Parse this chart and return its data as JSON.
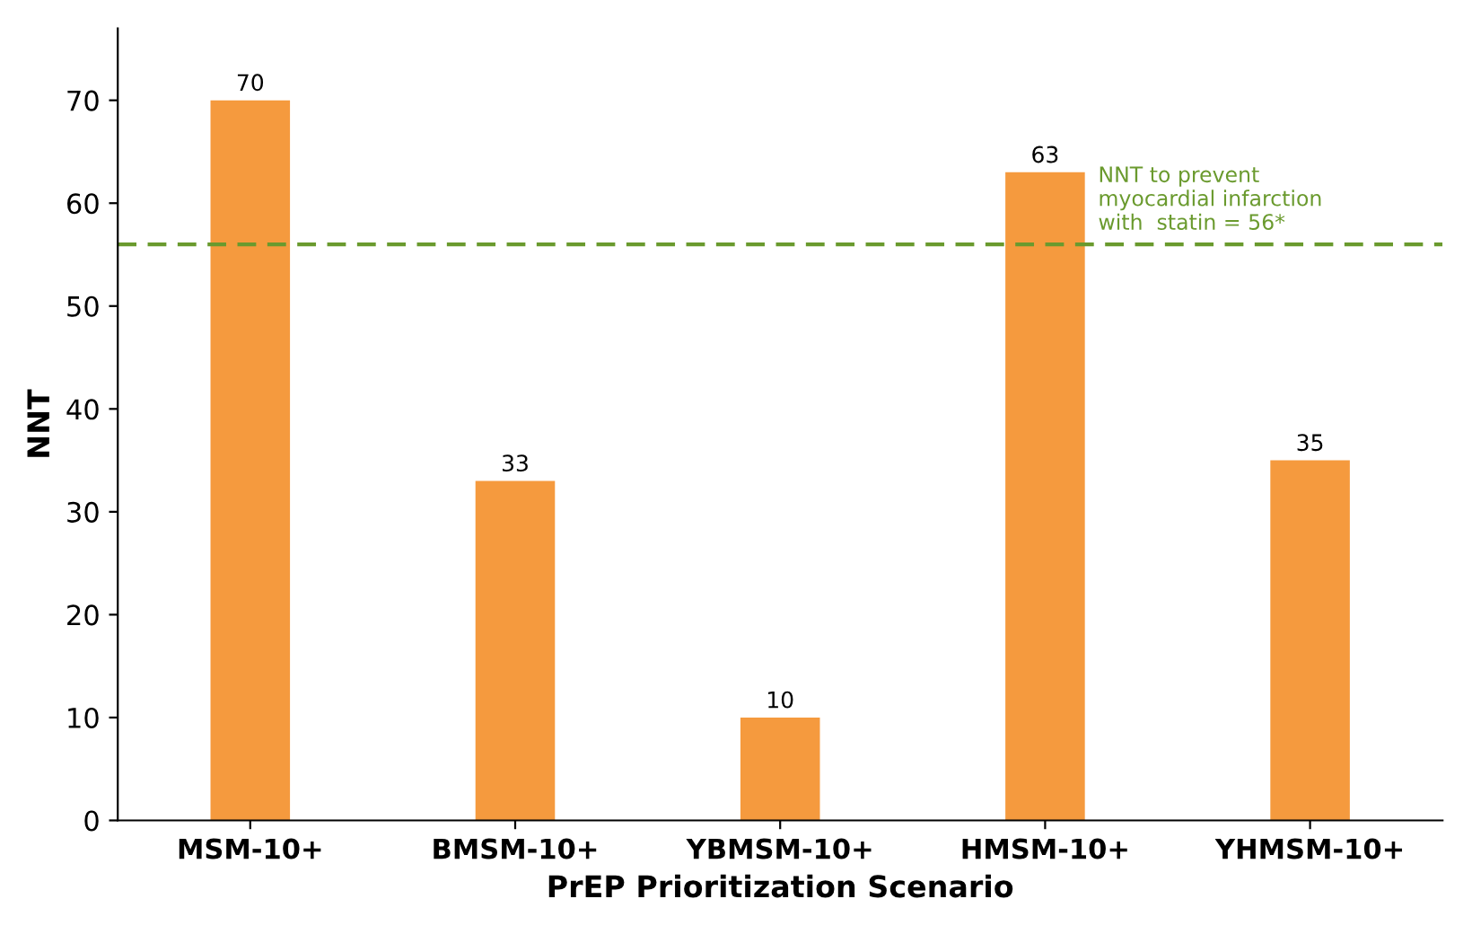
{
  "chart_data": {
    "type": "bar",
    "xlabel": "PrEP Prioritization Scenario",
    "ylabel": "NNT",
    "categories": [
      "MSM-10+",
      "BMSM-10+",
      "YBMSM-10+",
      "HMSM-10+",
      "YHMSM-10+"
    ],
    "values": [
      70,
      33,
      10,
      63,
      35
    ],
    "color": "#f59a3e",
    "data_labels": true,
    "ylim": [
      0,
      77
    ],
    "yticks": [
      0,
      10,
      20,
      30,
      40,
      50,
      60,
      70
    ],
    "grid": false,
    "ref_lines": [
      {
        "axis": "y",
        "value": 56,
        "label": "NNT to prevent\nmyocardial infarction\nwith  statin = 56*",
        "color": "#6a9a2e",
        "line_style": "dashed"
      }
    ]
  }
}
